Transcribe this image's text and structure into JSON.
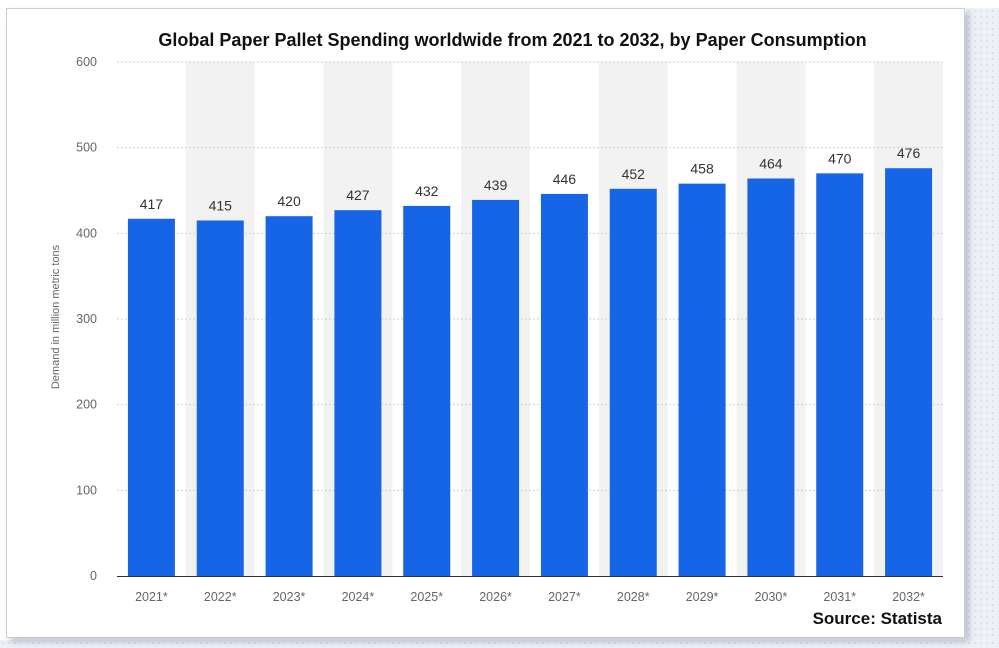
{
  "chart_data": {
    "type": "bar",
    "title": "Global Paper Pallet Spending worldwide from 2021 to 2032, by Paper Consumption",
    "xlabel": "",
    "ylabel": "Demand in million metric tons",
    "categories": [
      "2021*",
      "2022*",
      "2023*",
      "2024*",
      "2025*",
      "2026*",
      "2027*",
      "2028*",
      "2029*",
      "2030*",
      "2031*",
      "2032*"
    ],
    "values": [
      417,
      415,
      420,
      427,
      432,
      439,
      446,
      452,
      458,
      464,
      470,
      476
    ],
    "ylim": [
      0,
      600
    ],
    "yticks": [
      0,
      100,
      200,
      300,
      400,
      500,
      600
    ],
    "grid": true,
    "bar_color": "#1565e6",
    "alternate_band_color": "#f2f2f2",
    "data_labels": true
  },
  "source": "Source: Statista"
}
